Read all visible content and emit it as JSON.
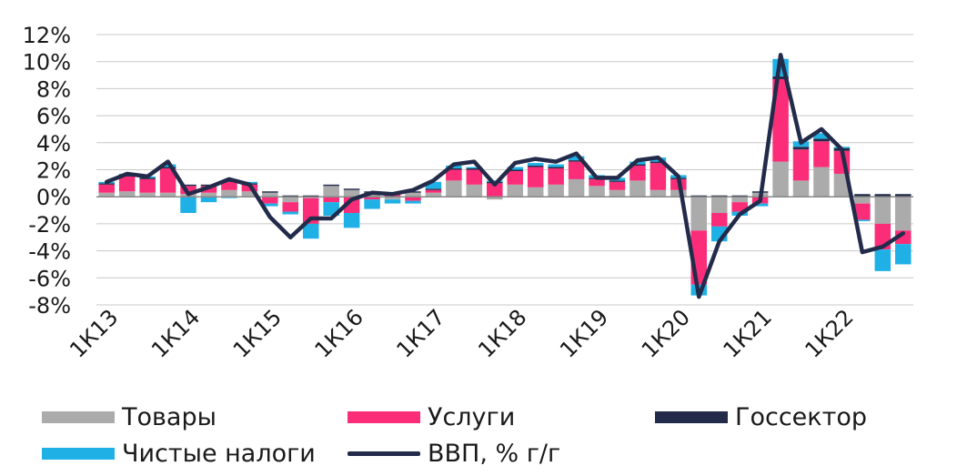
{
  "chart_data": {
    "type": "bar",
    "stacked": true,
    "ylim": [
      -8,
      12
    ],
    "ytick_step": 2,
    "y_tick_labels": [
      "-8%",
      "-6%",
      "-4%",
      "-2%",
      "0%",
      "2%",
      "4%",
      "6%",
      "8%",
      "10%",
      "12%"
    ],
    "x_tick_labels": [
      "1К13",
      "1К14",
      "1К15",
      "1К16",
      "1К17",
      "1К18",
      "1К19",
      "1К20",
      "1К21",
      "1К22"
    ],
    "categories": [
      "1К13",
      "2К13",
      "3К13",
      "4К13",
      "1К14",
      "2К14",
      "3К14",
      "4К14",
      "1К15",
      "2К15",
      "3К15",
      "4К15",
      "1К16",
      "2К16",
      "3К16",
      "4К16",
      "1К17",
      "2К17",
      "3К17",
      "4К17",
      "1К18",
      "2К18",
      "3К18",
      "4К18",
      "1К19",
      "2К19",
      "3К19",
      "4К19",
      "1К20",
      "2К20",
      "3К20",
      "4К20",
      "1К21",
      "2К21",
      "3К21",
      "4К21",
      "1К22",
      "2К22",
      "3К22",
      "4К22"
    ],
    "series": [
      {
        "name": "Товары",
        "kind": "bar",
        "color": "#ababab",
        "values": [
          0.3,
          0.4,
          0.3,
          0.3,
          0.2,
          0.3,
          0.5,
          0.4,
          0.3,
          -0.4,
          -0.1,
          0.8,
          0.5,
          0.3,
          -0.2,
          0.3,
          0.3,
          1.2,
          0.9,
          -0.2,
          0.9,
          0.7,
          0.9,
          1.3,
          0.8,
          0.5,
          1.2,
          0.5,
          0.5,
          -2.5,
          -1.2,
          -0.4,
          0.3,
          2.6,
          1.2,
          2.2,
          1.7,
          -0.5,
          -2.0,
          -2.5
        ]
      },
      {
        "name": "Услуги",
        "kind": "bar",
        "color": "#fb2d78",
        "values": [
          0.6,
          1.1,
          1.0,
          1.8,
          0.6,
          0.5,
          0.6,
          0.5,
          -0.5,
          -0.7,
          -1.9,
          -0.4,
          -1.2,
          -0.2,
          0.2,
          -0.3,
          0.2,
          0.8,
          1.1,
          1.0,
          1.0,
          1.5,
          1.2,
          1.3,
          0.5,
          0.6,
          1.1,
          2.0,
          0.8,
          -4.0,
          -1.0,
          -0.7,
          -0.5,
          6.1,
          2.3,
          1.9,
          1.7,
          -1.2,
          -1.9,
          -1.0
        ]
      },
      {
        "name": "Госсектор",
        "kind": "bar",
        "color": "#232b4a",
        "values": [
          0.1,
          0.1,
          0.1,
          0.1,
          0.1,
          0.1,
          0.1,
          0.1,
          0.1,
          0.1,
          0.1,
          0.1,
          0.1,
          0.1,
          0.1,
          0.1,
          0.1,
          0.1,
          0.1,
          0.1,
          0.1,
          0.1,
          0.1,
          0.1,
          0.1,
          0.1,
          0.1,
          0.1,
          0.1,
          0.1,
          0.1,
          0.1,
          0.1,
          0.2,
          0.2,
          0.2,
          0.2,
          0.2,
          0.2,
          0.2
        ]
      },
      {
        "name": "Чистые налоги",
        "kind": "bar",
        "color": "#1fb0e6",
        "values": [
          0.1,
          0.1,
          0.1,
          0.2,
          -1.2,
          -0.4,
          -0.1,
          0.1,
          -0.2,
          -0.2,
          -1.1,
          -1.0,
          -1.1,
          -0.7,
          -0.3,
          -0.2,
          0.5,
          0.2,
          0.1,
          0.1,
          0.2,
          0.2,
          0.2,
          0.3,
          0.2,
          0.2,
          0.2,
          0.3,
          0.2,
          -0.8,
          -1.1,
          -0.3,
          -0.2,
          1.3,
          0.4,
          0.4,
          0.1,
          -0.1,
          -1.6,
          -1.5
        ]
      },
      {
        "name": "ВВП, % г/г",
        "kind": "line",
        "color": "#232b4a",
        "values": [
          1.1,
          1.7,
          1.5,
          2.6,
          0.2,
          0.7,
          1.3,
          0.9,
          -1.5,
          -3.0,
          -1.6,
          -1.6,
          -0.2,
          0.3,
          0.2,
          0.5,
          1.2,
          2.4,
          2.6,
          0.9,
          2.5,
          2.8,
          2.6,
          3.2,
          1.4,
          1.4,
          2.7,
          2.9,
          1.5,
          -7.4,
          -3.3,
          -1.3,
          -0.3,
          10.5,
          4.0,
          5.0,
          3.5,
          -4.1,
          -3.7,
          -2.7
        ]
      }
    ]
  },
  "legend": {
    "goods": "Товары",
    "services": "Услуги",
    "government": "Госсектор",
    "net_taxes": "Чистые налоги",
    "gdp": "ВВП, % г/г"
  },
  "colors": {
    "goods": "#ababab",
    "services": "#fb2d78",
    "government": "#232b4a",
    "net_taxes": "#1fb0e6",
    "gdp": "#232b4a",
    "grid": "#c8c8c8"
  }
}
